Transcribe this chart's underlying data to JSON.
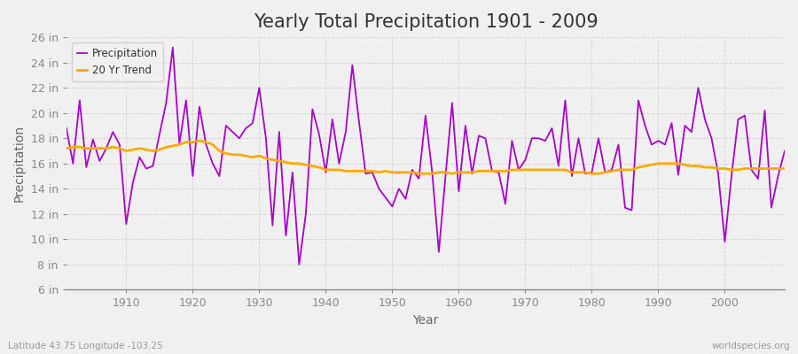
{
  "title": "Yearly Total Precipitation 1901 - 2009",
  "xlabel": "Year",
  "ylabel": "Precipitation",
  "years": [
    1901,
    1902,
    1903,
    1904,
    1905,
    1906,
    1907,
    1908,
    1909,
    1910,
    1911,
    1912,
    1913,
    1914,
    1915,
    1916,
    1917,
    1918,
    1919,
    1920,
    1921,
    1922,
    1923,
    1924,
    1925,
    1926,
    1927,
    1928,
    1929,
    1930,
    1931,
    1932,
    1933,
    1934,
    1935,
    1936,
    1937,
    1938,
    1939,
    1940,
    1941,
    1942,
    1943,
    1944,
    1945,
    1946,
    1947,
    1948,
    1949,
    1950,
    1951,
    1952,
    1953,
    1954,
    1955,
    1956,
    1957,
    1958,
    1959,
    1960,
    1961,
    1962,
    1963,
    1964,
    1965,
    1966,
    1967,
    1968,
    1969,
    1970,
    1971,
    1972,
    1973,
    1974,
    1975,
    1976,
    1977,
    1978,
    1979,
    1980,
    1981,
    1982,
    1983,
    1984,
    1985,
    1986,
    1987,
    1988,
    1989,
    1990,
    1991,
    1992,
    1993,
    1994,
    1995,
    1996,
    1997,
    1998,
    1999,
    2000,
    2001,
    2002,
    2003,
    2004,
    2005,
    2006,
    2007,
    2008,
    2009
  ],
  "precip": [
    18.8,
    16.0,
    21.0,
    15.7,
    17.9,
    16.2,
    17.2,
    18.5,
    17.5,
    11.2,
    14.5,
    16.5,
    15.6,
    15.8,
    18.3,
    20.8,
    25.2,
    17.6,
    21.0,
    15.0,
    20.5,
    17.5,
    16.0,
    15.0,
    19.0,
    18.5,
    18.0,
    18.8,
    19.2,
    22.0,
    18.0,
    11.1,
    18.5,
    10.3,
    15.3,
    8.0,
    12.0,
    20.3,
    18.3,
    15.3,
    19.5,
    16.0,
    18.5,
    23.8,
    19.3,
    15.2,
    15.3,
    14.0,
    13.3,
    12.6,
    14.0,
    13.2,
    15.5,
    14.8,
    19.8,
    15.3,
    9.0,
    15.0,
    20.8,
    13.8,
    19.0,
    15.2,
    18.2,
    18.0,
    15.4,
    15.3,
    12.8,
    17.8,
    15.5,
    16.3,
    18.0,
    18.0,
    17.8,
    18.8,
    15.8,
    21.0,
    15.0,
    18.0,
    15.2,
    15.3,
    18.0,
    15.3,
    15.5,
    17.5,
    12.5,
    12.3,
    21.0,
    19.0,
    17.5,
    17.8,
    17.5,
    19.2,
    15.1,
    19.0,
    18.5,
    22.0,
    19.5,
    18.0,
    15.2,
    9.8,
    15.0,
    19.5,
    19.8,
    15.5,
    14.8,
    20.2,
    12.5,
    15.0,
    17.0
  ],
  "trend": [
    17.2,
    17.3,
    17.3,
    17.2,
    17.2,
    17.2,
    17.2,
    17.3,
    17.2,
    17.0,
    17.1,
    17.2,
    17.1,
    17.0,
    17.1,
    17.3,
    17.4,
    17.5,
    17.7,
    17.7,
    17.8,
    17.7,
    17.5,
    17.0,
    16.8,
    16.7,
    16.7,
    16.6,
    16.5,
    16.6,
    16.4,
    16.3,
    16.2,
    16.1,
    16.0,
    16.0,
    15.9,
    15.8,
    15.7,
    15.5,
    15.5,
    15.5,
    15.4,
    15.4,
    15.4,
    15.4,
    15.4,
    15.3,
    15.4,
    15.3,
    15.3,
    15.3,
    15.3,
    15.2,
    15.2,
    15.2,
    15.3,
    15.3,
    15.2,
    15.3,
    15.3,
    15.3,
    15.4,
    15.4,
    15.4,
    15.4,
    15.4,
    15.5,
    15.5,
    15.5,
    15.5,
    15.5,
    15.5,
    15.5,
    15.5,
    15.5,
    15.3,
    15.3,
    15.3,
    15.2,
    15.2,
    15.3,
    15.4,
    15.5,
    15.5,
    15.5,
    15.7,
    15.8,
    15.9,
    16.0,
    16.0,
    16.0,
    16.0,
    15.9,
    15.8,
    15.8,
    15.7,
    15.7,
    15.6,
    15.6,
    15.5,
    15.5,
    15.6,
    15.6,
    15.6,
    15.6,
    15.6,
    15.6,
    15.6
  ],
  "precip_color": "#aa00cc",
  "trend_color": "#ffaa00",
  "fig_bg_color": "#f0f0f0",
  "plot_bg_color": "#f0f0f0",
  "grid_color": "#cccccc",
  "ylim": [
    6,
    26
  ],
  "yticks": [
    6,
    8,
    10,
    12,
    14,
    16,
    18,
    20,
    22,
    24,
    26
  ],
  "ytick_labels": [
    "6 in",
    "8 in",
    "10 in",
    "12 in",
    "14 in",
    "16 in",
    "18 in",
    "20 in",
    "22 in",
    "24 in",
    "26 in"
  ],
  "xlim": [
    1901,
    2009
  ],
  "xticks": [
    1910,
    1920,
    1930,
    1940,
    1950,
    1960,
    1970,
    1980,
    1990,
    2000
  ],
  "title_fontsize": 15,
  "axis_label_fontsize": 10,
  "tick_fontsize": 9,
  "footer_left": "Latitude 43.75 Longitude -103.25",
  "footer_right": "worldspecies.org"
}
